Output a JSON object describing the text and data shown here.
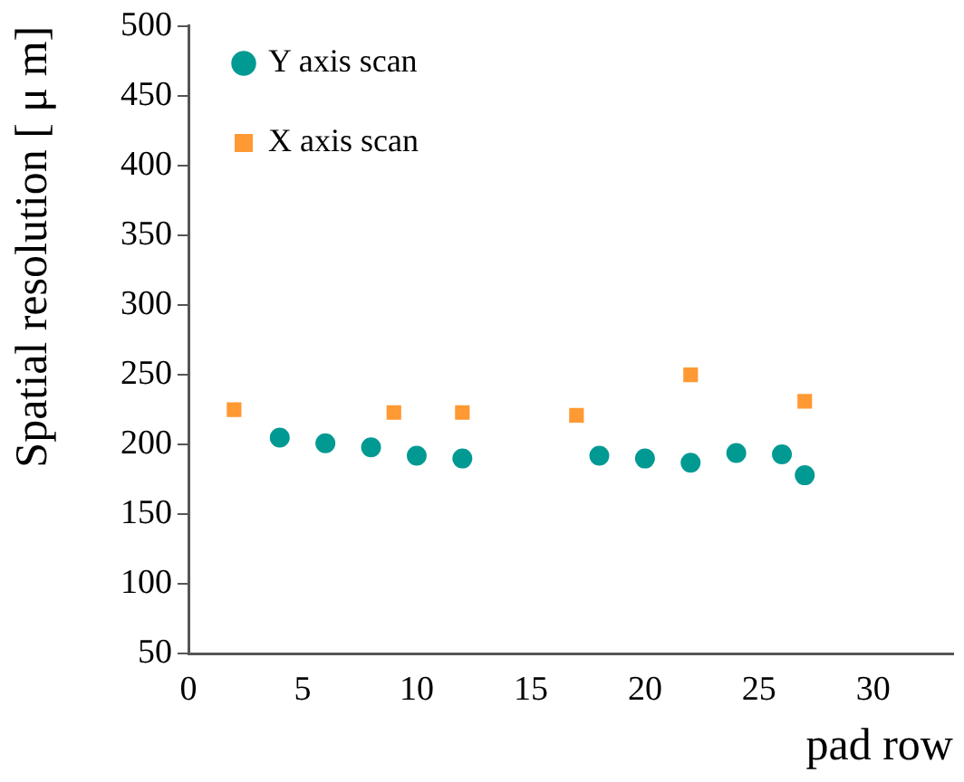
{
  "chart_data": {
    "type": "scatter",
    "xlabel": "pad row",
    "ylabel": "Spatial resolution [ μ m]",
    "xlim": [
      0,
      33.5
    ],
    "xticks": [
      0,
      5,
      10,
      15,
      20,
      25,
      30
    ],
    "ylim": [
      50,
      500
    ],
    "yticks": [
      50,
      100,
      150,
      200,
      250,
      300,
      350,
      400,
      450,
      500
    ],
    "grid": false,
    "legend": "top left",
    "series": [
      {
        "name": "Y axis scan",
        "color": "#009a93",
        "marker": "circle",
        "x": [
          4,
          6,
          8,
          10,
          12,
          18,
          20,
          22,
          24,
          26,
          27
        ],
        "values": [
          205,
          201,
          198,
          192,
          190,
          192,
          190,
          187,
          194,
          193,
          178
        ]
      },
      {
        "name": "X axis scan",
        "color": "#ff9933",
        "marker": "square",
        "x": [
          2,
          9,
          12,
          17,
          22,
          27
        ],
        "values": [
          225,
          223,
          223,
          221,
          250,
          231
        ]
      }
    ]
  }
}
